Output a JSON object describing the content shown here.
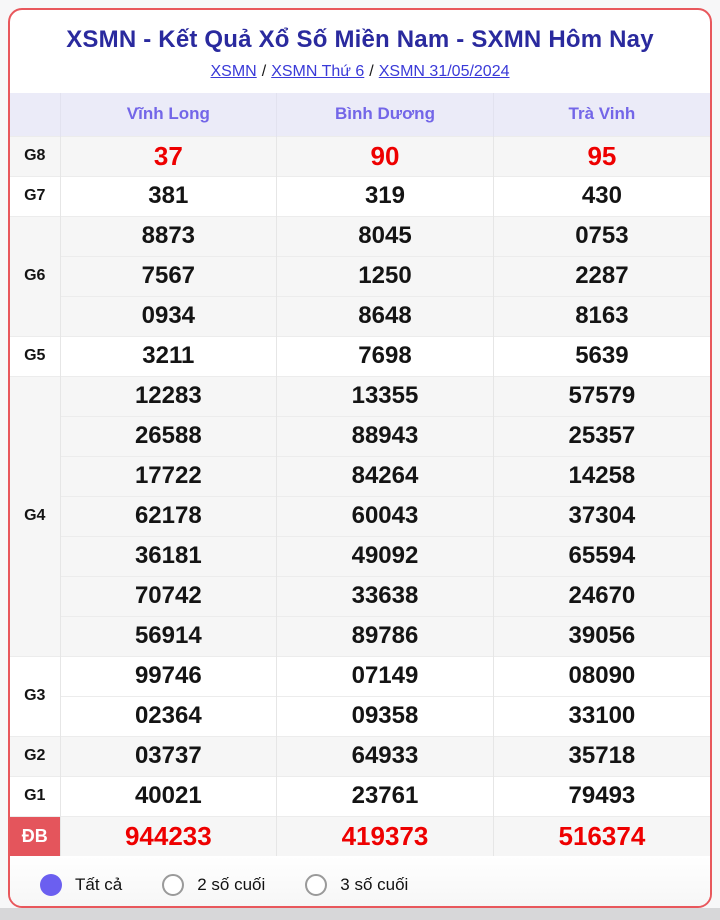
{
  "page": {
    "title": "XSMN - Kết Quả Xổ Số Miền Nam - SXMN Hôm Nay",
    "breadcrumb": [
      {
        "label": "XSMN"
      },
      {
        "label": "XSMN Thứ 6"
      },
      {
        "label": "XSMN 31/05/2024"
      }
    ],
    "breadcrumb_separator": "/"
  },
  "table": {
    "columns": [
      "Vĩnh Long",
      "Bình Dương",
      "Trà Vinh"
    ],
    "groups": [
      {
        "label": "G8",
        "highlight": true,
        "special": false,
        "rows": [
          [
            "37",
            "90",
            "95"
          ]
        ]
      },
      {
        "label": "G7",
        "highlight": false,
        "special": false,
        "rows": [
          [
            "381",
            "319",
            "430"
          ]
        ]
      },
      {
        "label": "G6",
        "highlight": false,
        "special": false,
        "rows": [
          [
            "8873",
            "8045",
            "0753"
          ],
          [
            "7567",
            "1250",
            "2287"
          ],
          [
            "0934",
            "8648",
            "8163"
          ]
        ]
      },
      {
        "label": "G5",
        "highlight": false,
        "special": false,
        "rows": [
          [
            "3211",
            "7698",
            "5639"
          ]
        ]
      },
      {
        "label": "G4",
        "highlight": false,
        "special": false,
        "rows": [
          [
            "12283",
            "13355",
            "57579"
          ],
          [
            "26588",
            "88943",
            "25357"
          ],
          [
            "17722",
            "84264",
            "14258"
          ],
          [
            "62178",
            "60043",
            "37304"
          ],
          [
            "36181",
            "49092",
            "65594"
          ],
          [
            "70742",
            "33638",
            "24670"
          ],
          [
            "56914",
            "89786",
            "39056"
          ]
        ]
      },
      {
        "label": "G3",
        "highlight": false,
        "special": false,
        "rows": [
          [
            "99746",
            "07149",
            "08090"
          ],
          [
            "02364",
            "09358",
            "33100"
          ]
        ]
      },
      {
        "label": "G2",
        "highlight": false,
        "special": false,
        "rows": [
          [
            "03737",
            "64933",
            "35718"
          ]
        ]
      },
      {
        "label": "G1",
        "highlight": false,
        "special": false,
        "rows": [
          [
            "40021",
            "23761",
            "79493"
          ]
        ]
      },
      {
        "label": "ĐB",
        "highlight": true,
        "special": true,
        "rows": [
          [
            "944233",
            "419373",
            "516374"
          ]
        ]
      }
    ]
  },
  "filters": {
    "options": [
      {
        "label": "Tất cả",
        "selected": true
      },
      {
        "label": "2 số cuối",
        "selected": false
      },
      {
        "label": "3 số cuối",
        "selected": false
      }
    ]
  },
  "colors": {
    "accent_red_number": "#ee0000",
    "special_label_bg": "#e4555c",
    "card_border_red": "#e8575c",
    "title_navy": "#2a2a9e",
    "link_blue": "#3a3ad8",
    "column_header_purple": "#7366e8",
    "radio_selected_indigo": "#6b5ff0"
  }
}
